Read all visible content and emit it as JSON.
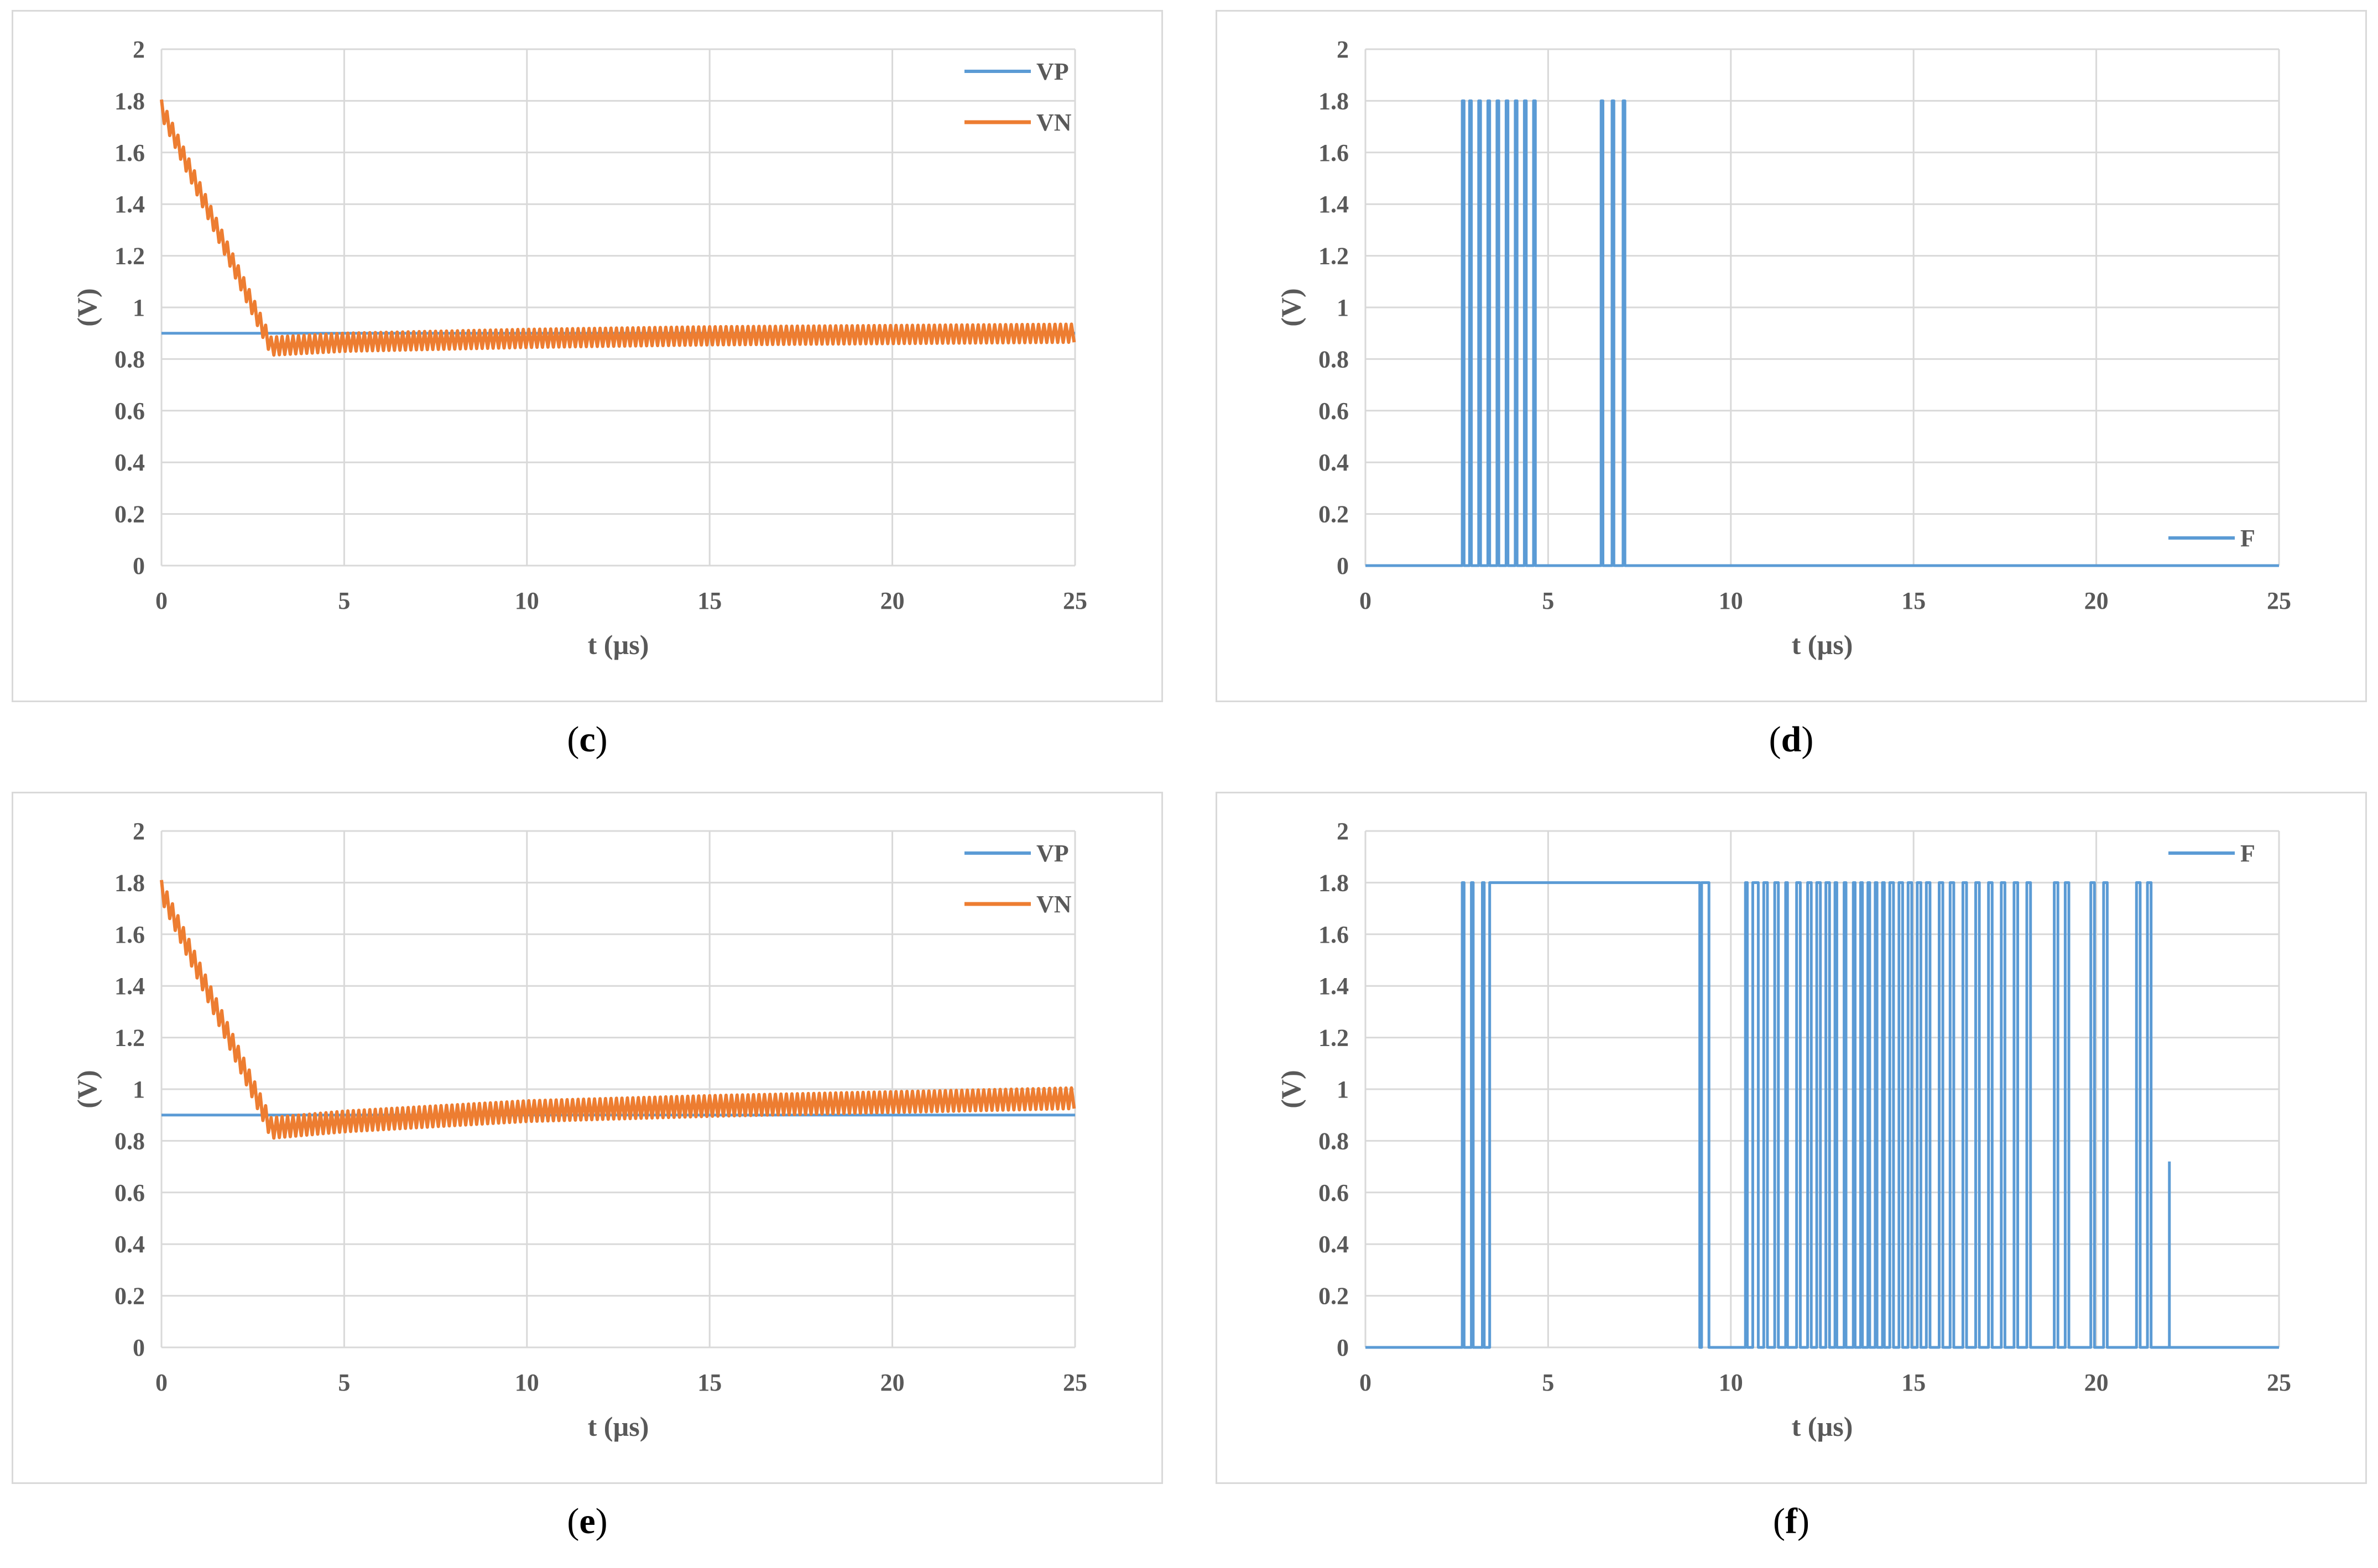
{
  "panels_layout": [
    "c",
    "d",
    "e",
    "f"
  ],
  "chart_data": [
    {
      "id": "c",
      "caption_open": "(",
      "caption_letter": "c",
      "caption_close": ")",
      "type": "line",
      "title": "",
      "xlabel": "t (µs)",
      "ylabel": "(V)",
      "xlim": [
        0,
        25
      ],
      "ylim": [
        0,
        2
      ],
      "xticks": [
        0,
        5,
        10,
        15,
        20,
        25
      ],
      "yticks": [
        0,
        0.2,
        0.4,
        0.6,
        0.8,
        1,
        1.2,
        1.4,
        1.6,
        1.8,
        2
      ],
      "grid": true,
      "legend_position": "top-right",
      "series": [
        {
          "name": "VP",
          "color": "#5b9bd5",
          "kind": "flat",
          "x": [
            0,
            25
          ],
          "y": [
            0.9,
            0.9
          ]
        },
        {
          "name": "VN",
          "color": "#ed7d31",
          "kind": "ripple",
          "x": [
            0,
            3,
            5,
            10,
            15,
            20,
            25
          ],
          "y": [
            1.77,
            0.85,
            0.865,
            0.88,
            0.89,
            0.895,
            0.9
          ],
          "ripple_amplitude": 0.035,
          "ripple_period": 0.15
        }
      ]
    },
    {
      "id": "d",
      "caption_open": "(",
      "caption_letter": "d",
      "caption_close": ")",
      "type": "line",
      "title": "",
      "xlabel": "t (µs)",
      "ylabel": "(V)",
      "xlim": [
        0,
        25
      ],
      "ylim": [
        0,
        2
      ],
      "xticks": [
        0,
        5,
        10,
        15,
        20,
        25
      ],
      "yticks": [
        0,
        0.2,
        0.4,
        0.6,
        0.8,
        1,
        1.2,
        1.4,
        1.6,
        1.8,
        2
      ],
      "grid": true,
      "legend_position": "bottom-right",
      "series": [
        {
          "name": "F",
          "color": "#5b9bd5",
          "kind": "digital",
          "high": 1.8,
          "low": 0,
          "start": 0,
          "end": 25,
          "initial": 0,
          "transitions": [
            2.65,
            2.7,
            2.85,
            2.9,
            3.1,
            3.15,
            3.35,
            3.4,
            3.6,
            3.65,
            3.85,
            3.9,
            4.1,
            4.15,
            4.35,
            4.4,
            4.6,
            4.65,
            6.45,
            6.5,
            6.75,
            6.8,
            7.05,
            7.1
          ]
        }
      ]
    },
    {
      "id": "e",
      "caption_open": "(",
      "caption_letter": "e",
      "caption_close": ")",
      "type": "line",
      "title": "",
      "xlabel": "t (µs)",
      "ylabel": "(V)",
      "xlim": [
        0,
        25
      ],
      "ylim": [
        0,
        2
      ],
      "xticks": [
        0,
        5,
        10,
        15,
        20,
        25
      ],
      "yticks": [
        0,
        0.2,
        0.4,
        0.6,
        0.8,
        1,
        1.2,
        1.4,
        1.6,
        1.8,
        2
      ],
      "grid": true,
      "legend_position": "top-right",
      "series": [
        {
          "name": "VP",
          "color": "#5b9bd5",
          "kind": "flat",
          "x": [
            0,
            25
          ],
          "y": [
            0.9,
            0.9
          ]
        },
        {
          "name": "VN",
          "color": "#ed7d31",
          "kind": "ripple",
          "x": [
            0,
            3,
            5,
            10,
            15,
            20,
            25
          ],
          "y": [
            1.77,
            0.85,
            0.875,
            0.915,
            0.935,
            0.95,
            0.965
          ],
          "ripple_amplitude": 0.04,
          "ripple_period": 0.15
        }
      ]
    },
    {
      "id": "f",
      "caption_open": "(",
      "caption_letter": "f",
      "caption_close": ")",
      "type": "line",
      "title": "",
      "xlabel": "t (µs)",
      "ylabel": "(V)",
      "xlim": [
        0,
        25
      ],
      "ylim": [
        0,
        2
      ],
      "xticks": [
        0,
        5,
        10,
        15,
        20,
        25
      ],
      "yticks": [
        0,
        0.2,
        0.4,
        0.6,
        0.8,
        1,
        1.2,
        1.4,
        1.6,
        1.8,
        2
      ],
      "grid": true,
      "legend_position": "top-right",
      "series": [
        {
          "name": "F",
          "color": "#5b9bd5",
          "kind": "digital",
          "high": 1.8,
          "low": 0,
          "start": 0,
          "end": 25,
          "initial": 0,
          "transitions": [
            2.65,
            2.7,
            2.9,
            2.95,
            3.2,
            3.25,
            3.4,
            9.15,
            9.2,
            9.4,
            10.4,
            10.45,
            10.6,
            10.75,
            10.9,
            11.0,
            11.2,
            11.3,
            11.5,
            11.55,
            11.8,
            11.9,
            12.1,
            12.2,
            12.35,
            12.45,
            12.6,
            12.7,
            12.85,
            12.9,
            13.1,
            13.15,
            13.35,
            13.4,
            13.55,
            13.6,
            13.75,
            13.8,
            13.95,
            14.0,
            14.15,
            14.2,
            14.35,
            14.45,
            14.6,
            14.7,
            14.85,
            14.95,
            15.1,
            15.2,
            15.35,
            15.45,
            15.7,
            15.8,
            16.0,
            16.1,
            16.35,
            16.45,
            16.7,
            16.8,
            17.05,
            17.15,
            17.4,
            17.5,
            17.75,
            17.85,
            18.1,
            18.2,
            18.85,
            18.95,
            19.15,
            19.25,
            19.85,
            19.95,
            20.2,
            20.3,
            21.1,
            21.2,
            21.4,
            21.5
          ],
          "spikes": [
            {
              "x": 22.0,
              "y": 0.72
            }
          ]
        }
      ]
    }
  ]
}
